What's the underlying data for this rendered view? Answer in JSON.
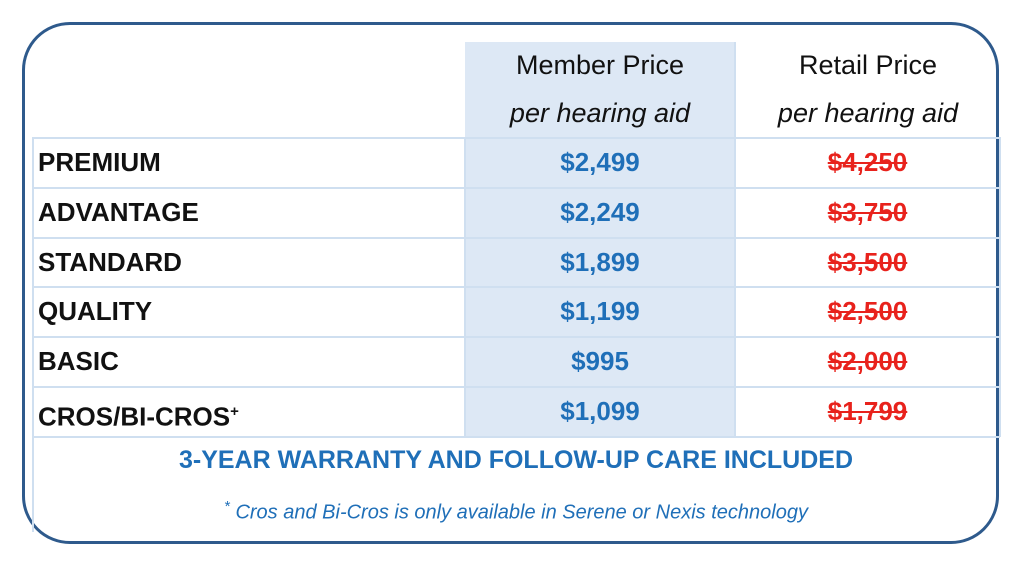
{
  "header": {
    "columns": [
      {
        "title": "Member Price",
        "subtitle": "per hearing aid"
      },
      {
        "title": "Retail Price",
        "subtitle": "per hearing aid"
      }
    ]
  },
  "table": {
    "rows": [
      [
        "PREMIUM",
        "$2,499",
        "$4,250"
      ],
      [
        "ADVANTAGE",
        "$2,249",
        "$3,750"
      ],
      [
        "STANDARD",
        "$1,899",
        "$3,500"
      ],
      [
        "QUALITY",
        "$1,199",
        "$2,500"
      ],
      [
        "BASIC",
        "$995",
        "$2,000"
      ],
      [
        "CROS/BI-CROS",
        "$1,099",
        "$1,799"
      ]
    ],
    "superscript": "+"
  },
  "footer": {
    "note": "3-YEAR WARRANTY AND FOLLOW-UP CARE INCLUDED",
    "footnote_mark": "*",
    "footnote": "Cros and Bi-Cros is only available in Serene or Nexis technology"
  }
}
